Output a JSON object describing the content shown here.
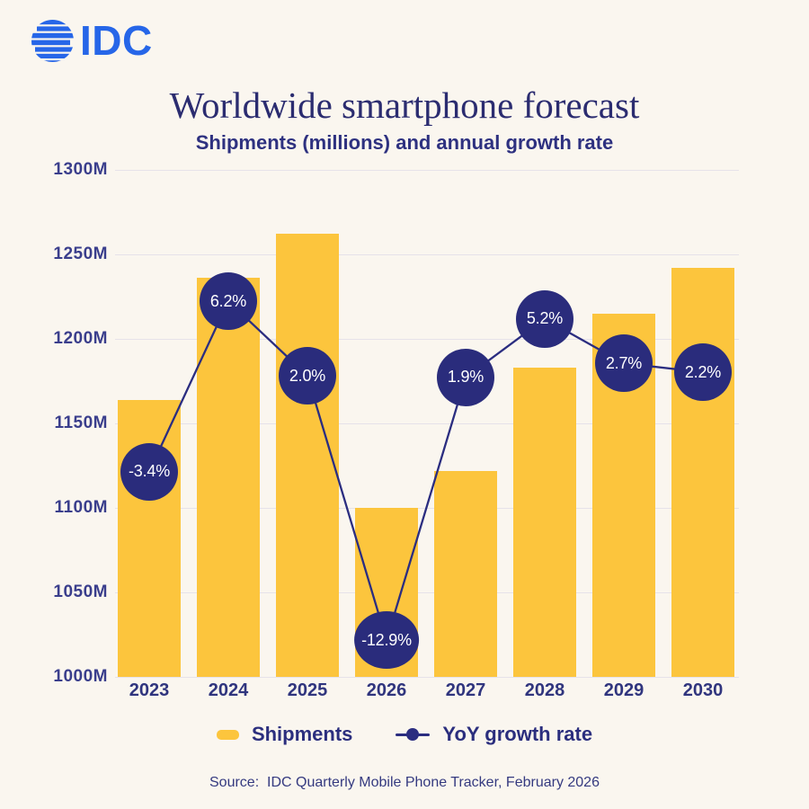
{
  "logo": {
    "text": "IDC"
  },
  "header": {
    "title": "Worldwide smartphone forecast",
    "subtitle": "Shipments (millions) and annual growth rate"
  },
  "chart_data": {
    "type": "bar+line combo",
    "categories": [
      "2023",
      "2024",
      "2025",
      "2026",
      "2027",
      "2028",
      "2029",
      "2030"
    ],
    "series": [
      {
        "name": "Shipments",
        "type": "bar",
        "unit": "millions",
        "values": [
          1164,
          1236,
          1262,
          1100,
          1122,
          1183,
          1215,
          1242
        ]
      },
      {
        "name": "YoY growth rate",
        "type": "line",
        "unit": "%",
        "values": [
          -3.4,
          6.2,
          2.0,
          -12.9,
          1.9,
          5.2,
          2.7,
          2.2
        ],
        "labels": [
          "-3.4%",
          "6.2%",
          "2.0%",
          "-12.9%",
          "1.9%",
          "5.2%",
          "2.7%",
          "2.2%"
        ]
      }
    ],
    "y_axis": {
      "min": 1000,
      "max": 1300,
      "tick_step": 50,
      "tick_suffix": "M",
      "ticks": [
        "1300M",
        "1250M",
        "1200M",
        "1150M",
        "1100M",
        "1050M",
        "1000M"
      ],
      "grid": true
    },
    "legend": [
      {
        "label": "Shipments",
        "marker": "bar-swatch"
      },
      {
        "label": "YoY growth rate",
        "marker": "line-dot"
      }
    ],
    "colors": {
      "bar": "#FCC53D",
      "line": "#2B2D80",
      "marker": "#2A2C7C",
      "marker_text": "#FFFFFF",
      "grid": "#E6E2E9",
      "logo_blue": "#2666E8"
    }
  },
  "footer": {
    "source": "Source:  IDC Quarterly Mobile Phone Tracker, February 2026"
  }
}
